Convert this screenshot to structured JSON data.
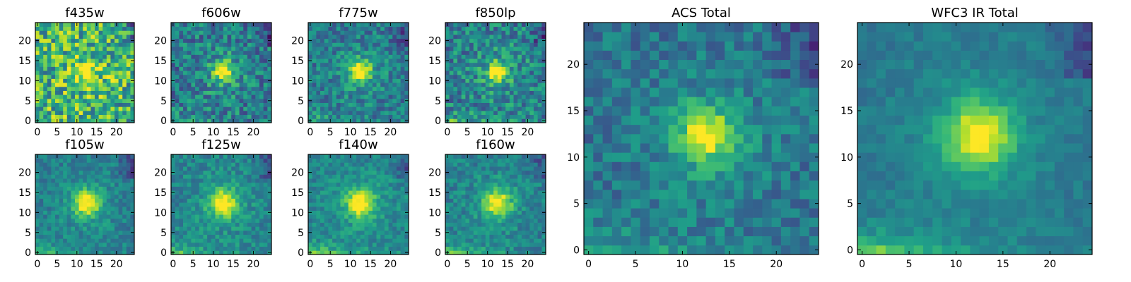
{
  "chart_data": [
    {
      "type": "heatmap",
      "title": "f435w",
      "xticks": [
        "0",
        "5",
        "10",
        "15",
        "20"
      ],
      "yticks": [
        "0",
        "5",
        "10",
        "15",
        "20"
      ],
      "xlim": [
        0,
        24
      ],
      "ylim": [
        0,
        24
      ],
      "colormap": "viridis",
      "grid": false
    },
    {
      "type": "heatmap",
      "title": "f606w",
      "xticks": [
        "0",
        "5",
        "10",
        "15",
        "20"
      ],
      "yticks": [
        "0",
        "5",
        "10",
        "15",
        "20"
      ],
      "xlim": [
        0,
        24
      ],
      "ylim": [
        0,
        24
      ],
      "colormap": "viridis",
      "grid": false
    },
    {
      "type": "heatmap",
      "title": "f775w",
      "xticks": [
        "0",
        "5",
        "10",
        "15",
        "20"
      ],
      "yticks": [
        "0",
        "5",
        "10",
        "15",
        "20"
      ],
      "xlim": [
        0,
        24
      ],
      "ylim": [
        0,
        24
      ],
      "colormap": "viridis",
      "grid": false
    },
    {
      "type": "heatmap",
      "title": "f850lp",
      "xticks": [
        "0",
        "5",
        "10",
        "15",
        "20"
      ],
      "yticks": [
        "0",
        "5",
        "10",
        "15",
        "20"
      ],
      "xlim": [
        0,
        24
      ],
      "ylim": [
        0,
        24
      ],
      "colormap": "viridis",
      "grid": false
    },
    {
      "type": "heatmap",
      "title": "f105w",
      "xticks": [
        "0",
        "5",
        "10",
        "15",
        "20"
      ],
      "yticks": [
        "0",
        "5",
        "10",
        "15",
        "20"
      ],
      "xlim": [
        0,
        24
      ],
      "ylim": [
        0,
        24
      ],
      "colormap": "viridis",
      "grid": false
    },
    {
      "type": "heatmap",
      "title": "f125w",
      "xticks": [
        "0",
        "5",
        "10",
        "15",
        "20"
      ],
      "yticks": [
        "0",
        "5",
        "10",
        "15",
        "20"
      ],
      "xlim": [
        0,
        24
      ],
      "ylim": [
        0,
        24
      ],
      "colormap": "viridis",
      "grid": false
    },
    {
      "type": "heatmap",
      "title": "f140w",
      "xticks": [
        "0",
        "5",
        "10",
        "15",
        "20"
      ],
      "yticks": [
        "0",
        "5",
        "10",
        "15",
        "20"
      ],
      "xlim": [
        0,
        24
      ],
      "ylim": [
        0,
        24
      ],
      "colormap": "viridis",
      "grid": false
    },
    {
      "type": "heatmap",
      "title": "f160w",
      "xticks": [
        "0",
        "5",
        "10",
        "15",
        "20"
      ],
      "yticks": [
        "0",
        "5",
        "10",
        "15",
        "20"
      ],
      "xlim": [
        0,
        24
      ],
      "ylim": [
        0,
        24
      ],
      "colormap": "viridis",
      "grid": false
    },
    {
      "type": "heatmap",
      "title": "ACS Total",
      "xticks": [
        "0",
        "5",
        "10",
        "15",
        "20"
      ],
      "yticks": [
        "0",
        "5",
        "10",
        "15",
        "20"
      ],
      "xlim": [
        0,
        24
      ],
      "ylim": [
        0,
        24
      ],
      "colormap": "viridis",
      "grid": false
    },
    {
      "type": "heatmap",
      "title": "WFC3 IR Total",
      "xticks": [
        "0",
        "5",
        "10",
        "15",
        "20"
      ],
      "yticks": [
        "0",
        "5",
        "10",
        "15",
        "20"
      ],
      "xlim": [
        0,
        24
      ],
      "ylim": [
        0,
        24
      ],
      "colormap": "viridis",
      "grid": false
    }
  ],
  "colors": {
    "viridis_low": "#440154",
    "viridis_mid": "#21918c",
    "viridis_high": "#fde725"
  }
}
